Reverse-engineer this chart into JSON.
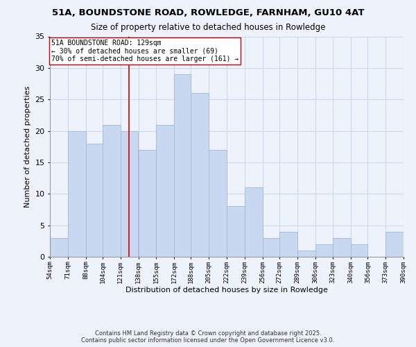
{
  "title": "51A, BOUNDSTONE ROAD, ROWLEDGE, FARNHAM, GU10 4AT",
  "subtitle": "Size of property relative to detached houses in Rowledge",
  "xlabel": "Distribution of detached houses by size in Rowledge",
  "ylabel": "Number of detached properties",
  "bins": [
    54,
    71,
    88,
    104,
    121,
    138,
    155,
    172,
    188,
    205,
    222,
    239,
    256,
    272,
    289,
    306,
    323,
    340,
    356,
    373,
    390
  ],
  "counts": [
    3,
    20,
    18,
    21,
    20,
    17,
    21,
    29,
    26,
    17,
    8,
    11,
    3,
    4,
    1,
    2,
    3,
    2,
    0,
    4
  ],
  "bar_color": "#c8d8f0",
  "bar_edgecolor": "#a8bcd8",
  "grid_color": "#ccd8ec",
  "property_value": 129,
  "property_line_color": "#cc0000",
  "annotation_text": "51A BOUNDSTONE ROAD: 129sqm\n← 30% of detached houses are smaller (69)\n70% of semi-detached houses are larger (161) →",
  "annotation_box_facecolor": "#ffffff",
  "annotation_box_edgecolor": "#cc0000",
  "ylim": [
    0,
    35
  ],
  "yticks": [
    0,
    5,
    10,
    15,
    20,
    25,
    30,
    35
  ],
  "footer_line1": "Contains HM Land Registry data © Crown copyright and database right 2025.",
  "footer_line2": "Contains public sector information licensed under the Open Government Licence v3.0.",
  "bg_color": "#eef2fa"
}
